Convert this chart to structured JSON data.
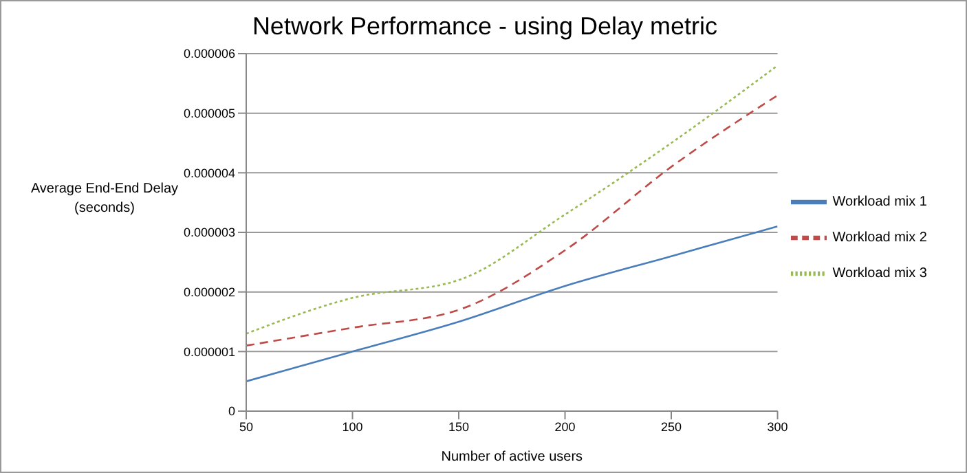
{
  "chart_data": {
    "type": "line",
    "title": "Network Performance - using Delay metric",
    "xlabel": "Number of active users",
    "ylabel": "Average End-End Delay (seconds)",
    "x": [
      50,
      100,
      150,
      200,
      250,
      300
    ],
    "xlim": [
      50,
      300
    ],
    "xticks": [
      50,
      100,
      150,
      200,
      250,
      300
    ],
    "ylim": [
      0,
      6e-06
    ],
    "yticks": [
      0,
      {
        "value": 1e-06,
        "label": "0.000001"
      },
      {
        "value": 2e-06,
        "label": "0.000002"
      },
      {
        "value": 3e-06,
        "label": "0.000003"
      },
      {
        "value": 4e-06,
        "label": "0.000004"
      },
      {
        "value": 5e-06,
        "label": "0.000005"
      },
      {
        "value": 6e-06,
        "label": "0.000006"
      }
    ],
    "grid": "y",
    "legend": "right",
    "marker": "none",
    "series": [
      {
        "name": "Workload mix 1",
        "color": "#4a7ebb",
        "line_style": "solid",
        "values": [
          5e-07,
          1e-06,
          1.5e-06,
          2.1e-06,
          2.6e-06,
          3.1e-06
        ]
      },
      {
        "name": "Workload mix 2",
        "color": "#be4b48",
        "line_style": "dashed",
        "values": [
          1.1e-06,
          1.4e-06,
          1.7e-06,
          2.7e-06,
          4.1e-06,
          5.3e-06
        ]
      },
      {
        "name": "Workload mix 3",
        "color": "#98b954",
        "line_style": "dotted",
        "values": [
          1.3e-06,
          1.9e-06,
          2.2e-06,
          3.3e-06,
          4.5e-06,
          5.8e-06
        ]
      }
    ]
  }
}
